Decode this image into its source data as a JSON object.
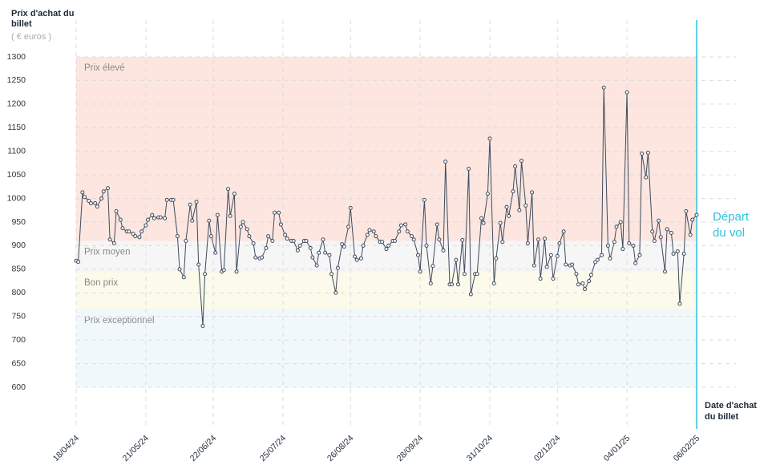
{
  "chart_data": {
    "type": "line",
    "y_title": "Prix d'achat du billet",
    "y_unit": "( € euros )",
    "x_title": "Date d'achat du billet",
    "zones": [
      {
        "name": "Prix élevé",
        "from": 910,
        "to": 1300,
        "color": "#fde6df"
      },
      {
        "name": "Prix moyen",
        "from": 845,
        "to": 910,
        "color": "#f6f6f6"
      },
      {
        "name": "Bon prix",
        "from": 765,
        "to": 845,
        "color": "#fbfaeb"
      },
      {
        "name": "Prix exceptionnel",
        "from": 600,
        "to": 765,
        "color": "#f1f8fc"
      }
    ],
    "departure": {
      "label": "Départ du vol",
      "x": "06/02/25",
      "color": "#2cc3e1"
    },
    "xlim": [
      "18/04/24",
      "06/02/25"
    ],
    "xticks": [
      "18/04/24",
      "21/05/24",
      "22/06/24",
      "25/07/24",
      "26/08/24",
      "28/09/24",
      "31/10/24",
      "02/12/24",
      "04/01/25",
      "06/02/25"
    ],
    "ylim": [
      600,
      1300
    ],
    "yticks": [
      600,
      650,
      700,
      750,
      800,
      850,
      900,
      950,
      1000,
      1050,
      1100,
      1150,
      1200,
      1250,
      1300
    ],
    "grid": true,
    "x": [
      "18/04/24",
      "19/04/24",
      "21/04/24",
      "22/04/24",
      "24/04/24",
      "25/04/24",
      "27/04/24",
      "28/04/24",
      "30/04/24",
      "01/05/24",
      "03/05/24",
      "04/05/24",
      "06/05/24",
      "07/05/24",
      "09/05/24",
      "10/05/24",
      "12/05/24",
      "13/05/24",
      "15/05/24",
      "16/05/24",
      "18/05/24",
      "19/05/24",
      "21/05/24",
      "22/05/24",
      "24/05/24",
      "25/05/24",
      "27/05/24",
      "28/05/24",
      "30/05/24",
      "31/05/24",
      "02/06/24",
      "03/06/24",
      "05/06/24",
      "06/06/24",
      "08/06/24",
      "09/06/24",
      "11/06/24",
      "12/06/24",
      "14/06/24",
      "15/06/24",
      "17/06/24",
      "18/06/24",
      "20/06/24",
      "21/06/24",
      "23/06/24",
      "24/06/24",
      "26/06/24",
      "27/06/24",
      "29/06/24",
      "30/06/24",
      "02/07/24",
      "03/07/24",
      "05/07/24",
      "06/07/24",
      "08/07/24",
      "09/07/24",
      "11/07/24",
      "12/07/24",
      "14/07/24",
      "15/07/24",
      "17/07/24",
      "18/07/24",
      "20/07/24",
      "21/07/24",
      "23/07/24",
      "24/07/24",
      "26/07/24",
      "27/07/24",
      "29/07/24",
      "30/07/24",
      "01/08/24",
      "02/08/24",
      "04/08/24",
      "05/08/24",
      "07/08/24",
      "08/08/24",
      "10/08/24",
      "11/08/24",
      "13/08/24",
      "14/08/24",
      "16/08/24",
      "17/08/24",
      "19/08/24",
      "20/08/24",
      "22/08/24",
      "23/08/24",
      "25/08/24",
      "26/08/24",
      "28/08/24",
      "29/08/24",
      "31/08/24",
      "01/09/24",
      "03/09/24",
      "04/09/24",
      "06/09/24",
      "07/09/24",
      "09/09/24",
      "10/09/24",
      "12/09/24",
      "13/09/24",
      "15/09/24",
      "16/09/24",
      "18/09/24",
      "19/09/24",
      "21/09/24",
      "22/09/24",
      "24/09/24",
      "25/09/24",
      "27/09/24",
      "28/09/24",
      "30/09/24",
      "01/10/24",
      "03/10/24",
      "04/10/24",
      "06/10/24",
      "07/10/24",
      "09/10/24",
      "10/10/24",
      "12/10/24",
      "13/10/24",
      "15/10/24",
      "16/10/24",
      "18/10/24",
      "19/10/24",
      "21/10/24",
      "22/10/24",
      "24/10/24",
      "25/10/24",
      "27/10/24",
      "28/10/24",
      "30/10/24",
      "31/10/24",
      "02/11/24",
      "03/11/24",
      "05/11/24",
      "06/11/24",
      "08/11/24",
      "09/11/24",
      "11/11/24",
      "12/11/24",
      "14/11/24",
      "15/11/24",
      "17/11/24",
      "18/11/24",
      "20/11/24",
      "21/11/24",
      "23/11/24",
      "24/11/24",
      "26/11/24",
      "27/11/24",
      "29/11/24",
      "30/11/24",
      "02/12/24",
      "03/12/24",
      "05/12/24",
      "06/12/24",
      "08/12/24",
      "09/12/24",
      "11/12/24",
      "12/12/24",
      "14/12/24",
      "15/12/24",
      "17/12/24",
      "18/12/24",
      "20/12/24",
      "21/12/24",
      "23/12/24",
      "24/12/24",
      "26/12/24",
      "27/12/24",
      "29/12/24",
      "30/12/24",
      "01/01/25",
      "02/01/25",
      "04/01/25",
      "05/01/25",
      "07/01/25",
      "08/01/25",
      "10/01/25",
      "11/01/25",
      "13/01/25",
      "14/01/25",
      "16/01/25",
      "17/01/25",
      "19/01/25",
      "20/01/25",
      "22/01/25",
      "23/01/25",
      "25/01/25",
      "26/01/25",
      "28/01/25",
      "29/01/25",
      "31/01/25",
      "01/02/25",
      "03/02/25",
      "04/02/25",
      "06/02/25"
    ],
    "series": [
      {
        "color": "#3d4b5e",
        "values": [
          868,
          866,
          1013,
          1003,
          995,
          990,
          990,
          983,
          1000,
          1015,
          1022,
          913,
          905,
          973,
          955,
          937,
          930,
          930,
          925,
          920,
          918,
          930,
          943,
          955,
          965,
          958,
          960,
          960,
          958,
          997,
          997,
          997,
          920,
          850,
          833,
          910,
          987,
          953,
          993,
          860,
          730,
          840,
          953,
          920,
          885,
          965,
          845,
          848,
          1020,
          963,
          1010,
          845,
          940,
          950,
          935,
          920,
          905,
          875,
          873,
          875,
          895,
          920,
          910,
          970,
          970,
          945,
          923,
          915,
          910,
          910,
          890,
          900,
          910,
          910,
          895,
          875,
          858,
          885,
          913,
          885,
          880,
          840,
          800,
          853,
          903,
          898,
          940,
          980,
          877,
          870,
          873,
          900,
          923,
          933,
          930,
          920,
          908,
          908,
          893,
          900,
          910,
          910,
          930,
          943,
          945,
          930,
          920,
          913,
          880,
          845,
          997,
          900,
          820,
          857,
          945,
          913,
          890,
          1078,
          818,
          818,
          870,
          818,
          912,
          840,
          1063,
          797,
          840,
          840,
          958,
          948,
          1010,
          1127,
          820,
          873,
          948,
          908,
          982,
          963,
          1015,
          1068,
          975,
          1080,
          985,
          905,
          1013,
          858,
          913,
          830,
          915,
          855,
          880,
          830,
          878,
          905,
          930,
          860,
          858,
          860,
          840,
          818,
          820,
          808,
          825,
          838,
          865,
          870,
          880,
          1235,
          900,
          873,
          908,
          940,
          950,
          893,
          1225,
          905,
          900,
          863,
          880,
          1095,
          1045,
          1097,
          930,
          910,
          953,
          918,
          845,
          935,
          927,
          883,
          888,
          777,
          883,
          973,
          923,
          955,
          965
        ]
      }
    ]
  }
}
